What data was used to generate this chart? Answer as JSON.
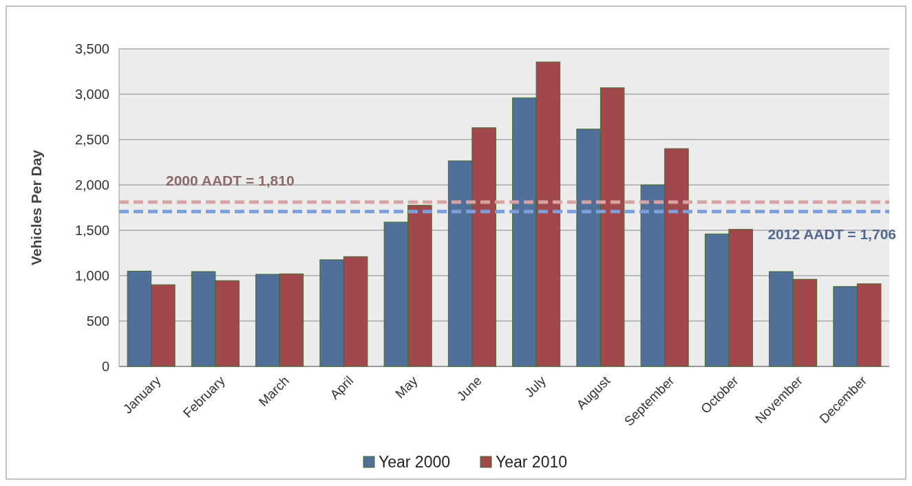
{
  "chart_data": {
    "type": "bar",
    "ylabel": "Vehicles Per Day",
    "categories": [
      "January",
      "February",
      "March",
      "April",
      "May",
      "June",
      "July",
      "August",
      "September",
      "October",
      "November",
      "December"
    ],
    "series": [
      {
        "name": "Year 2000",
        "color": "#50709a",
        "values": [
          1050,
          1045,
          1015,
          1175,
          1590,
          2265,
          2960,
          2615,
          2000,
          1460,
          1045,
          880
        ]
      },
      {
        "name": "Year 2010",
        "color": "#a0484b",
        "values": [
          900,
          945,
          1020,
          1210,
          1775,
          2630,
          3355,
          3070,
          2400,
          1510,
          960,
          910
        ]
      }
    ],
    "ylim": [
      0,
      3500
    ],
    "yticks": [
      {
        "value": 0,
        "label": "0"
      },
      {
        "value": 500,
        "label": "500"
      },
      {
        "value": 1000,
        "label": "1,000"
      },
      {
        "value": 1500,
        "label": "1,500"
      },
      {
        "value": 2000,
        "label": "2,000"
      },
      {
        "value": 2500,
        "label": "2,500"
      },
      {
        "value": 3000,
        "label": "3,000"
      },
      {
        "value": 3500,
        "label": "3,500"
      }
    ],
    "grid": "y",
    "legend": "bottom",
    "ref_lines": [
      {
        "axis": "y",
        "value": 1810,
        "label": "2000 AADT = 1,810",
        "color": "#d9a3a3",
        "line_style": "dashed"
      },
      {
        "axis": "y",
        "value": 1706,
        "label": "2012 AADT = 1,706",
        "color": "#7c9fdc",
        "line_style": "dashed"
      }
    ]
  }
}
